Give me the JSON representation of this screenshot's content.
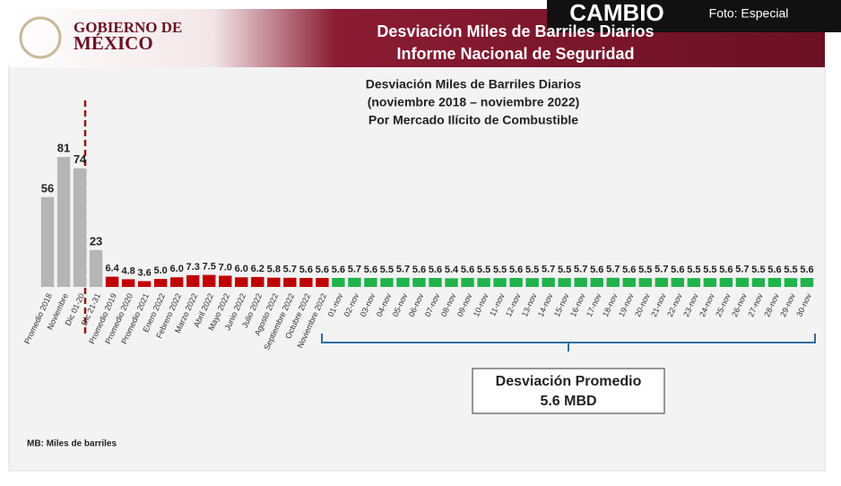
{
  "header": {
    "logo_line1": "GOBIERNO DE",
    "logo_line2": "MÉXICO",
    "title_line1": "Desviación Miles de Barriles Diarios",
    "title_line2": "Informe Nacional de Seguridad"
  },
  "watermark": {
    "brand": "CAMBIO",
    "credit": "Foto: Especial"
  },
  "footnote": "MB: Miles de barriles",
  "chart_data": {
    "type": "bar",
    "title_lines": [
      "Desviación Miles de Barriles Diarios",
      "(noviembre 2018 – noviembre 2022)",
      "Por Mercado Ilícito de Combustible"
    ],
    "categories": [
      "Promedio 2018",
      "Noviembre",
      "Dic 01-20",
      "Dic 21-31",
      "Promedio 2019",
      "Promedio 2020",
      "Promedio 2021",
      "Enero 2022",
      "Febrero 2022",
      "Marzo 2022",
      "Abril 2022",
      "Mayo 2022",
      "Junio 2022",
      "Julio 2022",
      "Agosto 2022",
      "Septiembre 2022",
      "Octubre 2022",
      "Noviembre 2022",
      "01-nov",
      "02-nov",
      "03-nov",
      "04-nov",
      "05-nov",
      "06-nov",
      "07-nov",
      "08-nov",
      "09-nov",
      "10-nov",
      "11-nov",
      "12-nov",
      "13-nov",
      "14-nov",
      "15-nov",
      "16-nov",
      "17-nov",
      "18-nov",
      "19-nov",
      "20-nov",
      "21-nov",
      "22-nov",
      "23-nov",
      "24-nov",
      "25-nov",
      "26-nov",
      "27-nov",
      "28-nov",
      "29-nov",
      "30-nov"
    ],
    "values": [
      56,
      81,
      74,
      23,
      6.4,
      4.8,
      3.6,
      5.0,
      6.0,
      7.3,
      7.5,
      7.0,
      6.0,
      6.2,
      5.8,
      5.7,
      5.6,
      5.6,
      5.6,
      5.7,
      5.6,
      5.5,
      5.7,
      5.6,
      5.6,
      5.4,
      5.6,
      5.5,
      5.5,
      5.6,
      5.5,
      5.7,
      5.5,
      5.7,
      5.6,
      5.7,
      5.6,
      5.5,
      5.7,
      5.6,
      5.5,
      5.5,
      5.6,
      5.7,
      5.5,
      5.6,
      5.5,
      5.6
    ],
    "value_labels": [
      "56",
      "81",
      "74",
      "23",
      "6.4",
      "4.8",
      "3.6",
      "5.0",
      "6.0",
      "7.3",
      "7.5",
      "7.0",
      "6.0",
      "6.2",
      "5.8",
      "5.7",
      "5.6",
      "5.6",
      "5.6",
      "5.7",
      "5.6",
      "5.5",
      "5.7",
      "5.6",
      "5.6",
      "5.4",
      "5.6",
      "5.5",
      "5.5",
      "5.6",
      "5.5",
      "5.7",
      "5.5",
      "5.7",
      "5.6",
      "5.7",
      "5.6",
      "5.5",
      "5.7",
      "5.6",
      "5.5",
      "5.5",
      "5.6",
      "5.7",
      "5.5",
      "5.6",
      "5.5",
      "5.6"
    ],
    "bar_colors": [
      "#b5b5b5",
      "#b5b5b5",
      "#b5b5b5",
      "#b5b5b5",
      "#c00000",
      "#c00000",
      "#c00000",
      "#c00000",
      "#c00000",
      "#c00000",
      "#c00000",
      "#c00000",
      "#c00000",
      "#c00000",
      "#c00000",
      "#c00000",
      "#c00000",
      "#c00000",
      "#21b34b",
      "#21b34b",
      "#21b34b",
      "#21b34b",
      "#21b34b",
      "#21b34b",
      "#21b34b",
      "#21b34b",
      "#21b34b",
      "#21b34b",
      "#21b34b",
      "#21b34b",
      "#21b34b",
      "#21b34b",
      "#21b34b",
      "#21b34b",
      "#21b34b",
      "#21b34b",
      "#21b34b",
      "#21b34b",
      "#21b34b",
      "#21b34b",
      "#21b34b",
      "#21b34b",
      "#21b34b",
      "#21b34b",
      "#21b34b",
      "#21b34b",
      "#21b34b",
      "#21b34b"
    ],
    "ylim": [
      0,
      90
    ],
    "annotation": {
      "line1": "Desviación Promedio",
      "line2": "5.6 MBD"
    }
  }
}
